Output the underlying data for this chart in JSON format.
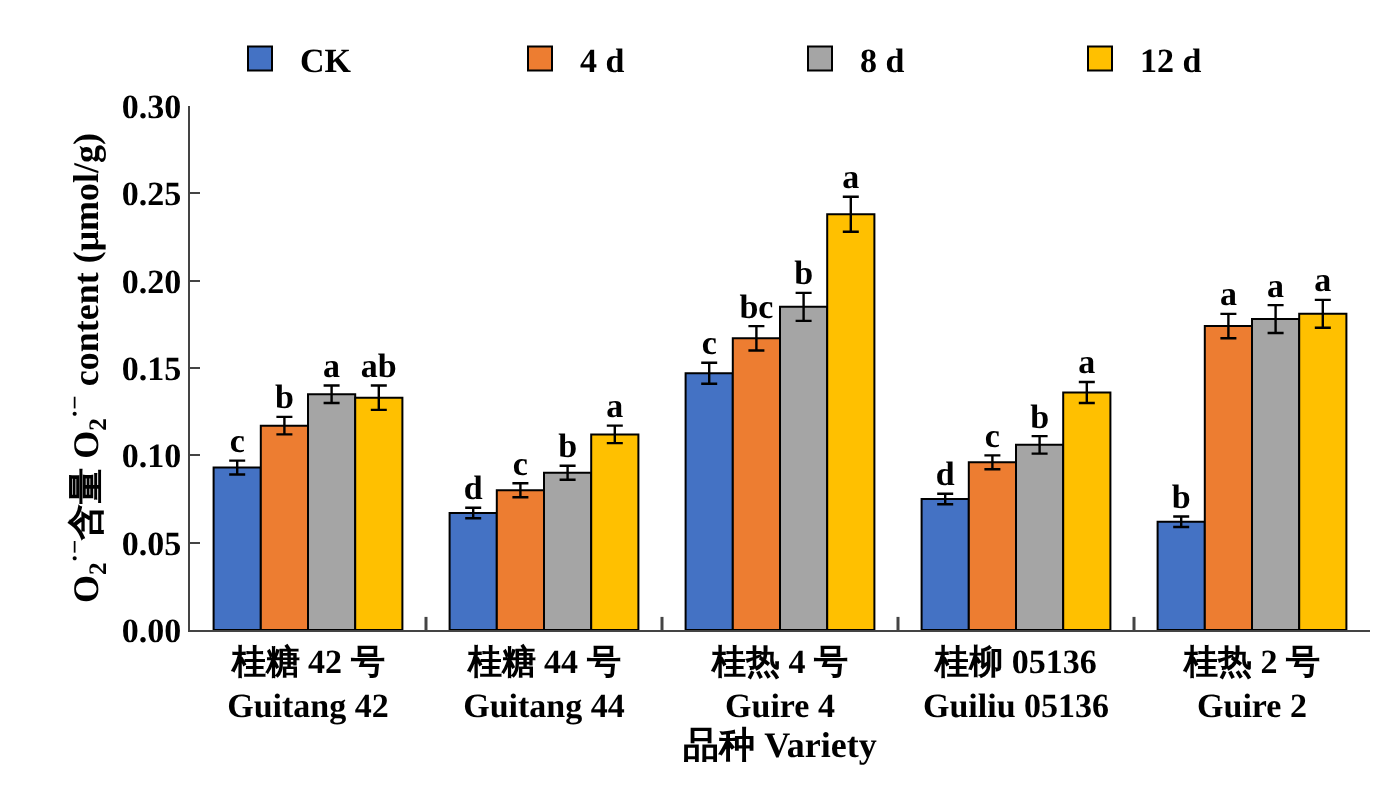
{
  "chart_data": {
    "type": "bar",
    "xlabel": "品种 Variety",
    "ylabel": "O$_{2}$$^{·−}$含量 O$_{2}$$^{·−}$ content (μmol/g)",
    "categories": [
      "桂糖 42 号\nGuitang 42",
      "桂糖 44 号\nGuitang 44",
      "桂热 4 号\nGuire 4",
      "桂柳 05136\nGuiliu 05136",
      "桂热 2 号\nGuire 2"
    ],
    "series": [
      {
        "name": "CK",
        "color": "#4472c4",
        "values": [
          0.093,
          0.067,
          0.147,
          0.075,
          0.062
        ],
        "errors": [
          0.004,
          0.003,
          0.006,
          0.003,
          0.003
        ],
        "value_labels": [
          "c",
          "d",
          "c",
          "d",
          "b"
        ]
      },
      {
        "name": "4 d",
        "color": "#ed7d31",
        "values": [
          0.117,
          0.08,
          0.167,
          0.096,
          0.174
        ],
        "errors": [
          0.005,
          0.004,
          0.007,
          0.004,
          0.007
        ],
        "value_labels": [
          "b",
          "c",
          "bc",
          "c",
          "a"
        ]
      },
      {
        "name": "8 d",
        "color": "#a5a5a5",
        "values": [
          0.135,
          0.09,
          0.185,
          0.106,
          0.178
        ],
        "errors": [
          0.005,
          0.004,
          0.008,
          0.005,
          0.008
        ],
        "value_labels": [
          "a",
          "b",
          "b",
          "b",
          "a"
        ]
      },
      {
        "name": "12 d",
        "color": "#ffc000",
        "values": [
          0.133,
          0.112,
          0.238,
          0.136,
          0.181
        ],
        "errors": [
          0.007,
          0.005,
          0.01,
          0.006,
          0.008
        ],
        "value_labels": [
          "ab",
          "a",
          "a",
          "a",
          "a"
        ]
      }
    ],
    "ylim": [
      0,
      0.3
    ],
    "yticks": [
      {
        "value": 0,
        "label": "0.00"
      },
      {
        "value": 0.05,
        "label": "0.05"
      },
      {
        "value": 0.1,
        "label": "0.10"
      },
      {
        "value": 0.15,
        "label": "0.15"
      },
      {
        "value": 0.2,
        "label": "0.20"
      },
      {
        "value": 0.25,
        "label": "0.25"
      },
      {
        "value": 0.3,
        "label": "0.30"
      }
    ],
    "grid": false,
    "legend": "top"
  }
}
